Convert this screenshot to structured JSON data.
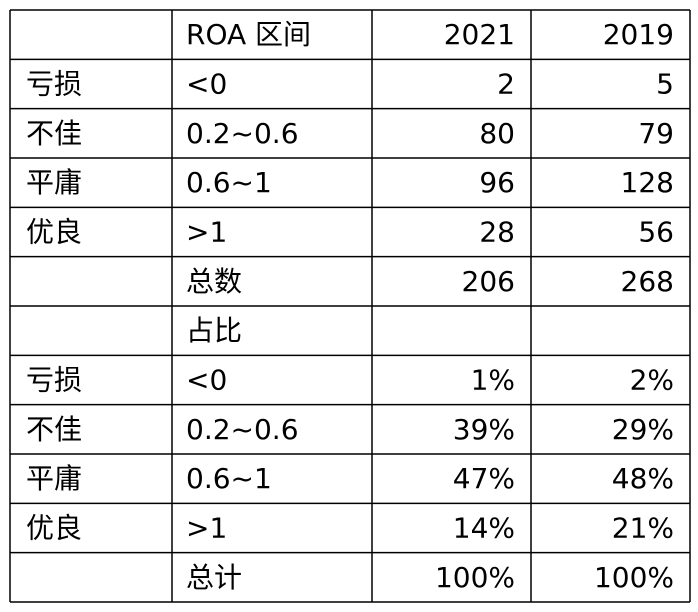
{
  "table": {
    "header": {
      "range": "ROA 区间",
      "y2021": "2021",
      "y2019": "2019"
    },
    "rows": [
      {
        "label": "亏损",
        "range": "<0",
        "y2021": "2",
        "y2019": "5"
      },
      {
        "label": "不佳",
        "range": "0.2~0.6",
        "y2021": "80",
        "y2019": "79"
      },
      {
        "label": "平庸",
        "range": "0.6~1",
        "y2021": "96",
        "y2019": "128"
      },
      {
        "label": "优良",
        "range": ">1",
        "y2021": "28",
        "y2019": "56"
      },
      {
        "range": "总数",
        "y2021": "206",
        "y2019": "268"
      },
      {
        "range": "占比"
      },
      {
        "label": "亏损",
        "range": "<0",
        "y2021": "1%",
        "y2019": "2%"
      },
      {
        "label": "不佳",
        "range": "0.2~0.6",
        "y2021": "39%",
        "y2019": "29%"
      },
      {
        "label": "平庸",
        "range": "0.6~1",
        "y2021": "47%",
        "y2019": "48%"
      },
      {
        "label": "优良",
        "range": ">1",
        "y2021": "14%",
        "y2019": "21%"
      },
      {
        "range": "总计",
        "y2021": "100%",
        "y2019": "100%"
      }
    ]
  }
}
